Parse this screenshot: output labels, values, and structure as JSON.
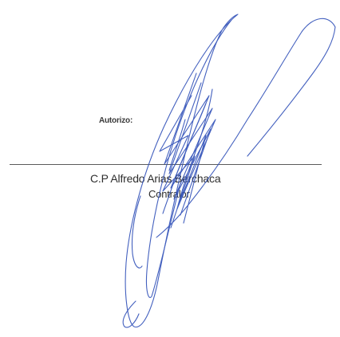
{
  "document": {
    "approval_label": "Autorizo:",
    "signer_name": "C.P Alfredo Arias Berchaca",
    "signer_role": "Contralor"
  },
  "signature": {
    "type": "handwritten-signature",
    "ink_color": "#2f4fb8"
  }
}
